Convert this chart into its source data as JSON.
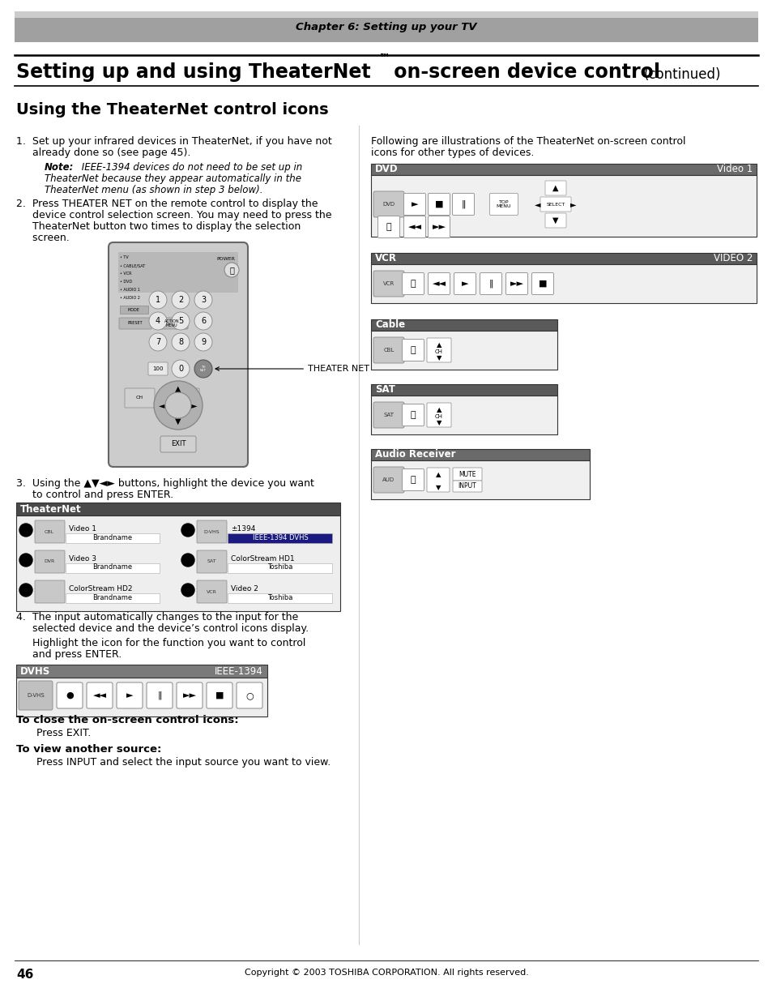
{
  "page_bg": "#ffffff",
  "header_bg": "#a0a0a0",
  "header_text": "Chapter 6: Setting up your TV",
  "title_main": "Setting up and using TheaterNet",
  "title_tm": "™",
  "title_rest": " on-screen device control",
  "title_cont": "(continued)",
  "section_title": "Using the TheaterNet control icons",
  "footer_text": "Copyright © 2003 TOSHIBA CORPORATION. All rights reserved.",
  "page_num": "46",
  "dvd_bar_color": "#6a6a6a",
  "dvd_bar_text_l": "DVD",
  "dvd_bar_text_r": "Video 1",
  "vcr_bar_color": "#5a5a5a",
  "vcr_bar_text_l": "VCR",
  "vcr_bar_text_r": "VIDEO 2",
  "cable_bar_color": "#5a5a5a",
  "cable_bar_text_l": "Cable",
  "sat_bar_color": "#5a5a5a",
  "sat_bar_text_l": "SAT",
  "audio_bar_color": "#6a6a6a",
  "audio_bar_text_l": "Audio Receiver",
  "theaternet_bar_color": "#4a4a4a",
  "theaternet_bar_text": "TheaterNet",
  "dvhs_bar_color": "#7a7a7a",
  "dvhs_bar_text_l": "DVHS",
  "dvhs_bar_text_r": "IEEE-1394"
}
